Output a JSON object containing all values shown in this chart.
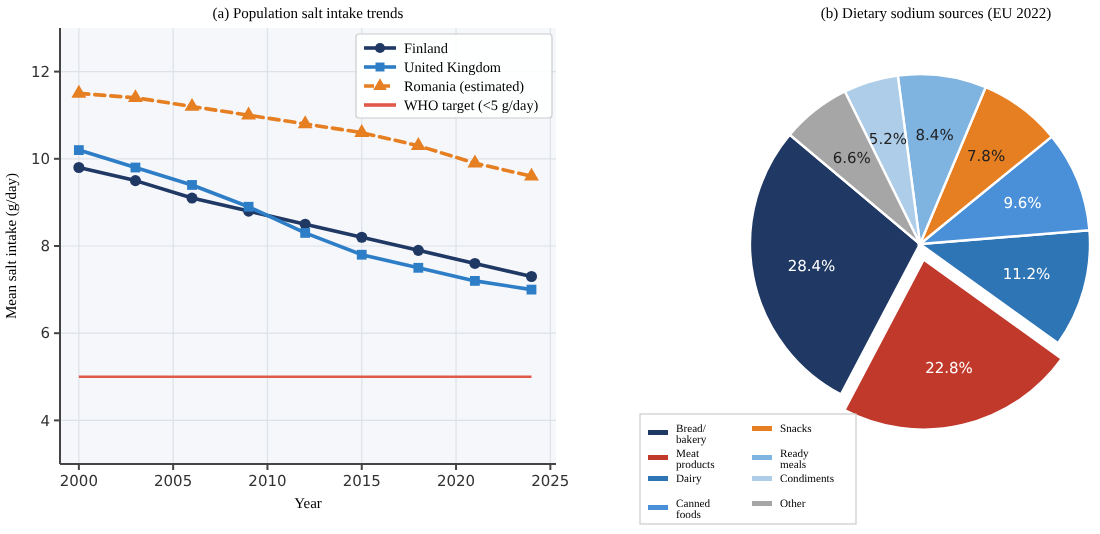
{
  "chart_data": [
    {
      "type": "line",
      "title": "(a) Population salt intake trends",
      "xlabel": "Year",
      "ylabel": "Mean salt intake (g/day)",
      "x": [
        2000,
        2003,
        2006,
        2009,
        2012,
        2015,
        2018,
        2021,
        2024
      ],
      "series": [
        {
          "name": "Finland",
          "color": "#1f3864",
          "values": [
            9.8,
            9.5,
            9.1,
            8.8,
            8.5,
            8.2,
            7.9,
            7.6,
            7.3
          ],
          "marker": "circle",
          "line_style": "solid"
        },
        {
          "name": "United Kingdom",
          "color": "#2e7dc7",
          "values": [
            10.2,
            9.8,
            9.4,
            8.9,
            8.3,
            7.8,
            7.5,
            7.2,
            7.0
          ],
          "marker": "square",
          "line_style": "solid"
        },
        {
          "name": "Romania (estimated)",
          "color": "#e67e22",
          "values": [
            11.5,
            11.4,
            11.2,
            11.0,
            10.8,
            10.6,
            10.3,
            9.9,
            9.6
          ],
          "marker": "triangle",
          "line_style": "dashed"
        }
      ],
      "ref_lines": [
        {
          "axis": "y",
          "value": 5,
          "label": "WHO target (<5 g/day)",
          "color": "#e05a4a"
        }
      ],
      "xlim": [
        1999,
        2025.3
      ],
      "xticks": [
        2000,
        2005,
        2010,
        2015,
        2020,
        2025
      ],
      "ylim": [
        3,
        13
      ],
      "yticks": [
        4,
        6,
        8,
        10,
        12
      ],
      "grid": true,
      "legend": "top right"
    },
    {
      "type": "pie",
      "title": "(b) Dietary sodium sources (EU 2022)",
      "categories": [
        "Bread/ bakery",
        "Meat products",
        "Dairy",
        "Canned foods",
        "Snacks",
        "Ready meals",
        "Condiments",
        "Other"
      ],
      "values": [
        28.4,
        22.8,
        11.2,
        9.6,
        7.8,
        8.4,
        5.2,
        6.6
      ],
      "colors": [
        "#1f3864",
        "#c0392b",
        "#2e75b6",
        "#4a90d9",
        "#e67e22",
        "#7fb3e0",
        "#aecde8",
        "#a6a6a6"
      ],
      "value_labels": [
        "28.4%",
        "22.8%",
        "11.2%",
        "9.6%",
        "7.8%",
        "8.4%",
        "5.2%",
        "6.6%"
      ],
      "legend": "bottom left"
    }
  ]
}
